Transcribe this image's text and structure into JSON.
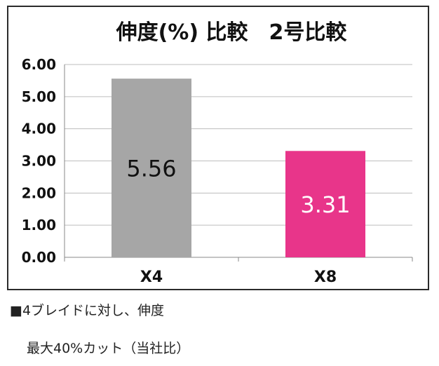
{
  "chart_data": {
    "type": "bar",
    "title": "伸度(%) 比較　2号比較",
    "categories": [
      "X4",
      "X8"
    ],
    "values": [
      5.56,
      3.31
    ],
    "value_labels": [
      "5.56",
      "3.31"
    ],
    "bar_colors": [
      "#a6a6a6",
      "#e8358a"
    ],
    "value_label_colors": [
      "#111111",
      "#ffffff"
    ],
    "ylim": [
      0,
      6
    ],
    "yticks": [
      "0.00",
      "1.00",
      "2.00",
      "3.00",
      "4.00",
      "5.00",
      "6.00"
    ],
    "grid": true,
    "xlabel": "",
    "ylabel": ""
  },
  "notes": {
    "line1": "■4ブレイドに対し、伸度",
    "line2": "最大40%カット（当社比）"
  }
}
